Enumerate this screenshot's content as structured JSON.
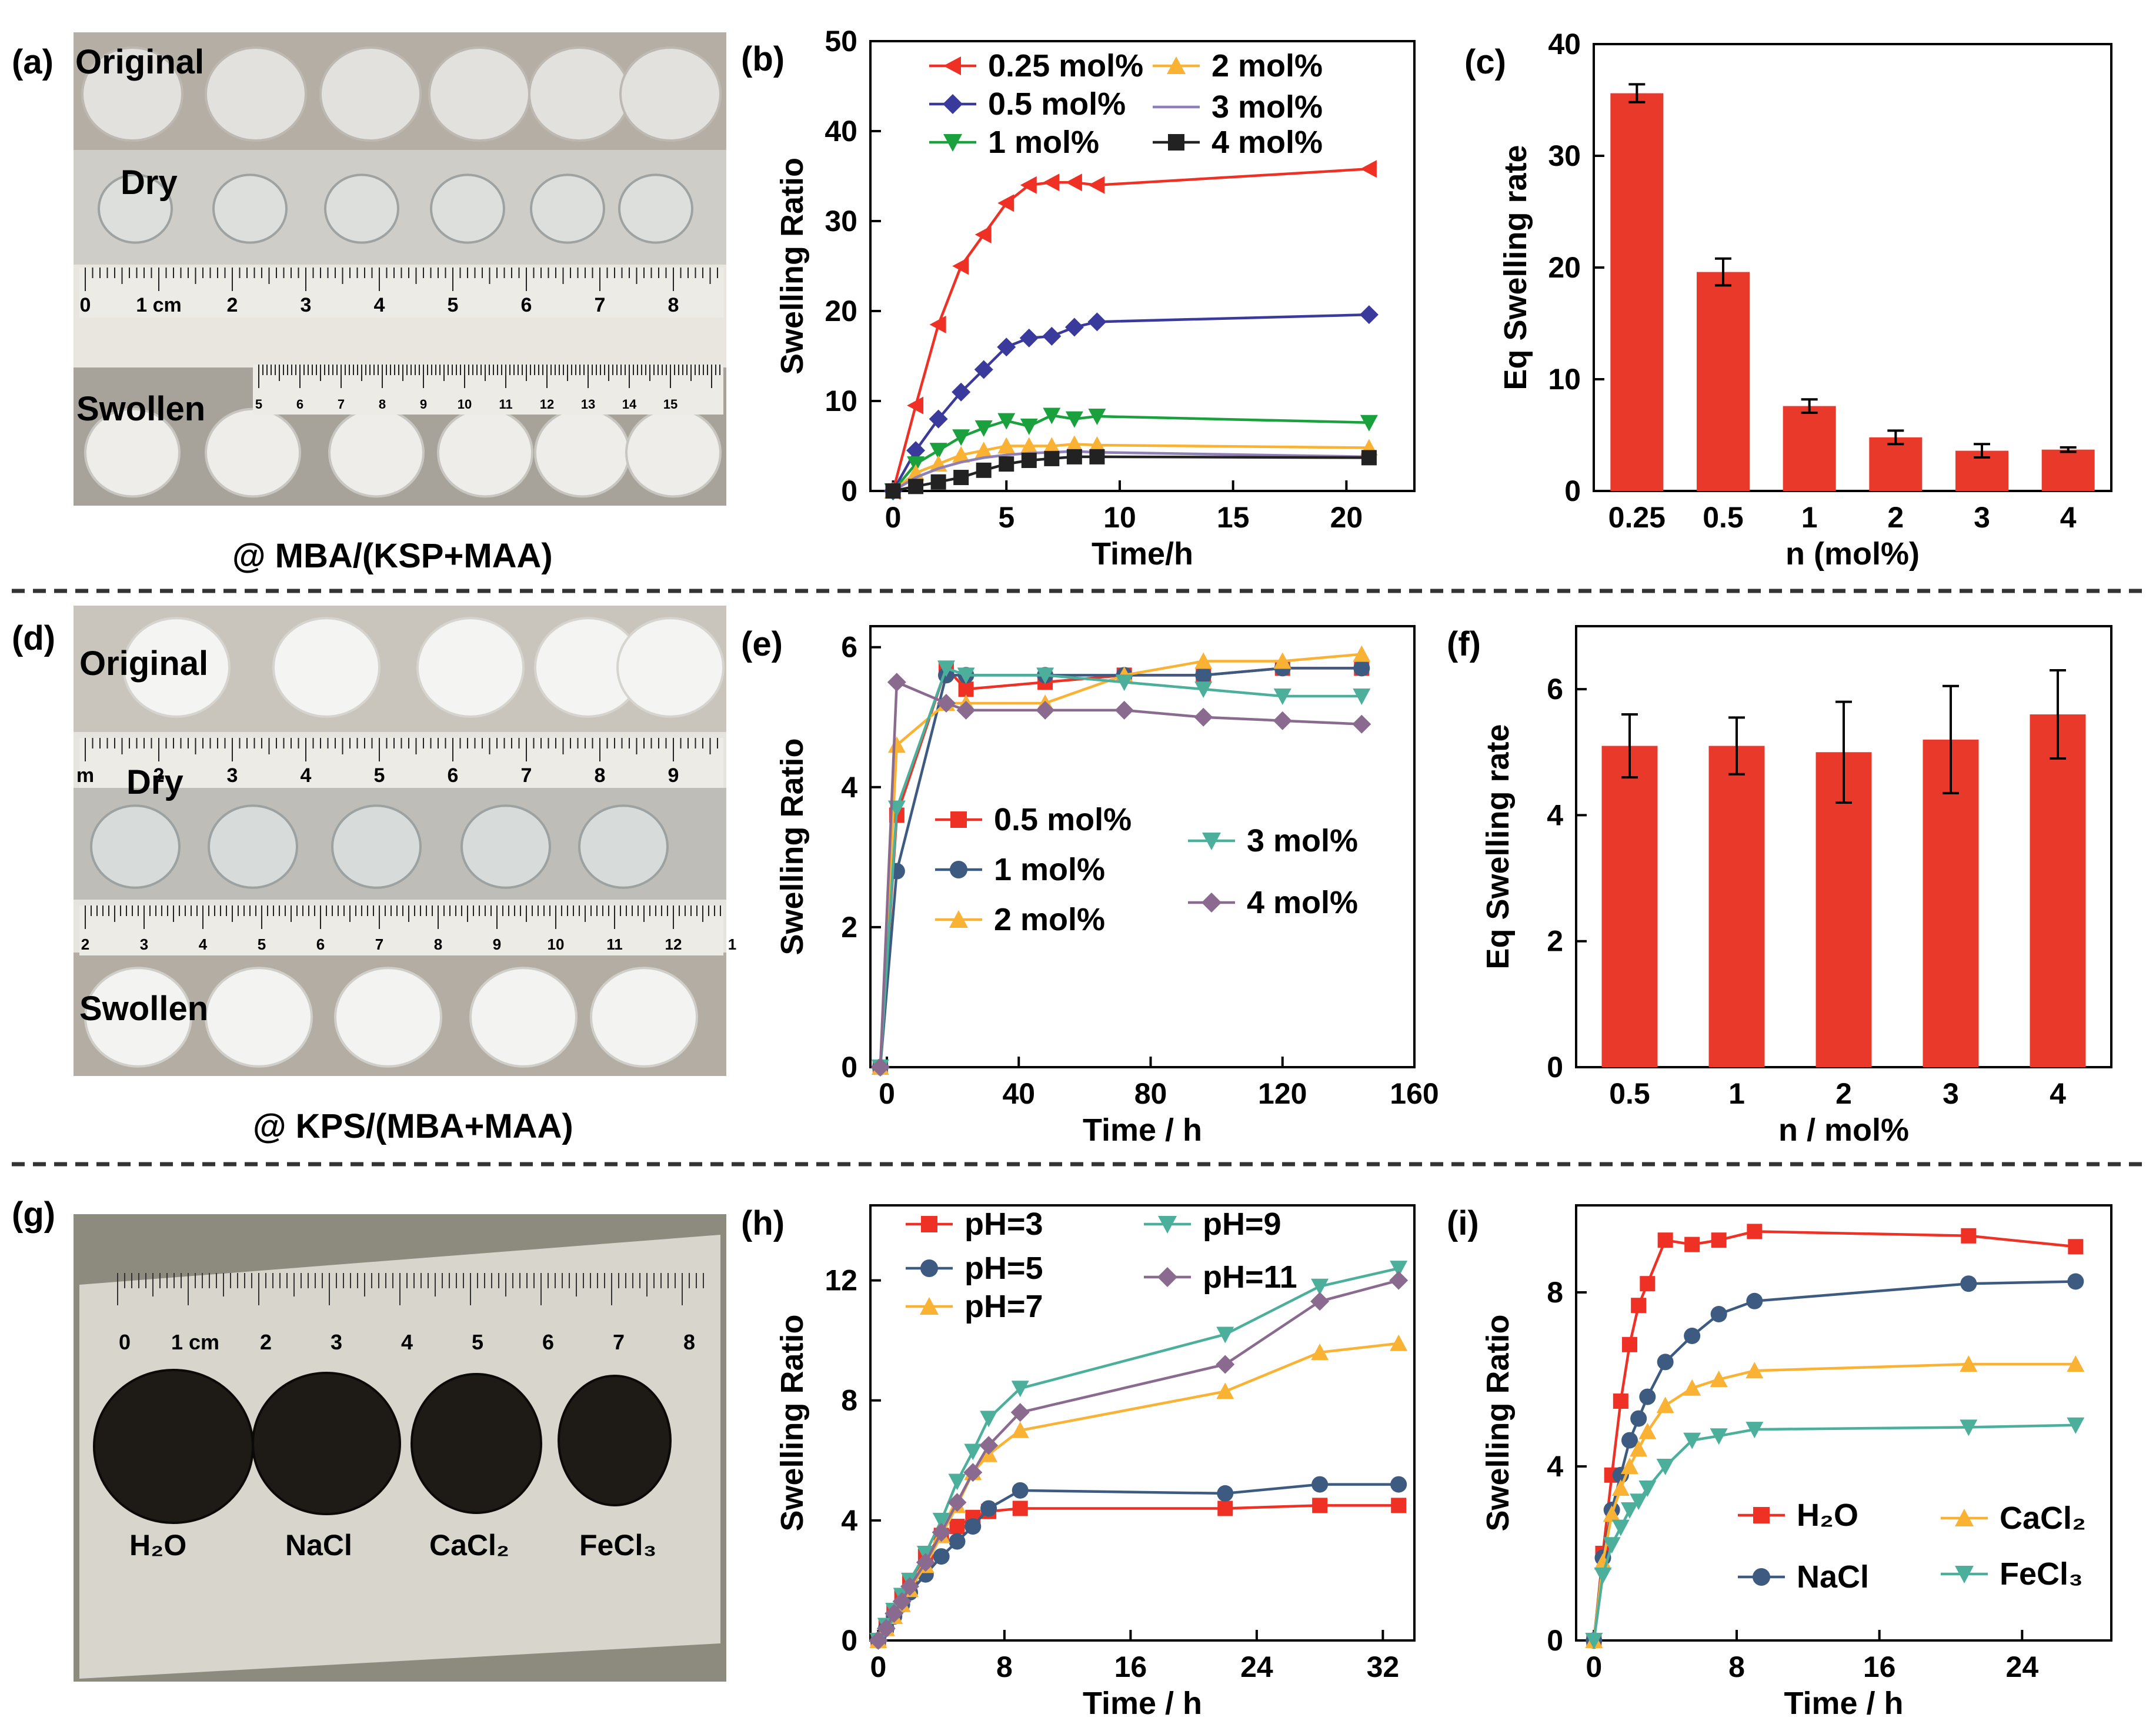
{
  "colors": {
    "red": "#ee3124",
    "blue": "#3a3a9c",
    "green": "#1aa03c",
    "orange": "#f9b233",
    "purple": "#8e7fb6",
    "black": "#222222",
    "steel": "#3d5a80",
    "teal": "#4caf9c",
    "mauve": "#8a6b8f",
    "bar": "#e8392b"
  },
  "photos": {
    "a": {
      "label": "(a)",
      "rows": [
        "Original",
        "Dry",
        "Swollen"
      ],
      "ruler_nums": [
        "0",
        "1 cm",
        "2",
        "3",
        "4",
        "5",
        "6",
        "7",
        "8"
      ],
      "ruler2_nums": [
        "5",
        "6",
        "7",
        "8",
        "9",
        "10",
        "11",
        "12",
        "13",
        "14",
        "15"
      ],
      "caption": "@ MBA/(KSP+MAA)"
    },
    "d": {
      "label": "(d)",
      "rows": [
        "Original",
        "Dry",
        "Swollen"
      ],
      "ruler_nums": [
        "m",
        "2",
        "3",
        "4",
        "5",
        "6",
        "7",
        "8",
        "9"
      ],
      "ruler2_nums": [
        "2",
        "3",
        "4",
        "5",
        "6",
        "7",
        "8",
        "9",
        "10",
        "11",
        "12",
        "1"
      ],
      "caption": "@ KPS/(MBA+MAA)"
    },
    "g": {
      "label": "(g)",
      "ruler_nums": [
        "0",
        "1 cm",
        "2",
        "3",
        "4",
        "5",
        "6",
        "7",
        "8"
      ],
      "samples": [
        "H₂O",
        "NaCl",
        "CaCl₂",
        "FeCl₃"
      ]
    }
  },
  "chart_data": [
    {
      "panel": "(b)",
      "type": "line",
      "xlabel": "Time/h",
      "ylabel": "Swelling Ratio",
      "xlim": [
        -1,
        23
      ],
      "ylim": [
        0,
        50
      ],
      "xticks": [
        0,
        5,
        10,
        15,
        20
      ],
      "yticks": [
        0,
        10,
        20,
        30,
        40,
        50
      ],
      "x": [
        0,
        1,
        2,
        3,
        4,
        5,
        6,
        7,
        8,
        9,
        21
      ],
      "series": [
        {
          "name": "0.25 mol%",
          "color": "red",
          "marker": "tri-left",
          "values": [
            0,
            9.5,
            18.5,
            25,
            28.5,
            32,
            34,
            34.3,
            34.3,
            34,
            35.8
          ]
        },
        {
          "name": "0.5 mol%",
          "color": "blue",
          "marker": "diamond",
          "values": [
            0,
            4.5,
            8,
            11,
            13.5,
            16,
            17,
            17.2,
            18.2,
            18.8,
            19.6
          ]
        },
        {
          "name": "1 mol%",
          "color": "green",
          "marker": "tri-down",
          "values": [
            0,
            3,
            4.5,
            6,
            7,
            7.8,
            7.2,
            8.4,
            8,
            8.3,
            7.6
          ]
        },
        {
          "name": "2 mol%",
          "color": "orange",
          "marker": "tri-up",
          "values": [
            0,
            2,
            3,
            4,
            4.5,
            5,
            5,
            5,
            5.2,
            5.1,
            4.8
          ]
        },
        {
          "name": "3 mol%",
          "color": "purple",
          "marker": "none",
          "values": [
            0,
            1.5,
            2.5,
            3.2,
            3.7,
            4,
            4.2,
            4.3,
            4.4,
            4.3,
            3.8
          ]
        },
        {
          "name": "4 mol%",
          "color": "black",
          "marker": "square",
          "values": [
            0,
            0.5,
            1,
            1.5,
            2.3,
            3,
            3.4,
            3.6,
            3.8,
            3.8,
            3.7
          ]
        }
      ]
    },
    {
      "panel": "(c)",
      "type": "bar",
      "xlabel": "n (mol%)",
      "ylabel": "Eq Swelling rate",
      "ylim": [
        0,
        40
      ],
      "yticks": [
        0,
        10,
        20,
        30,
        40
      ],
      "categories": [
        "0.25",
        "0.5",
        "1",
        "2",
        "3",
        "4"
      ],
      "values": [
        35.6,
        19.6,
        7.6,
        4.8,
        3.6,
        3.7
      ],
      "errors": [
        0.8,
        1.2,
        0.6,
        0.6,
        0.6,
        0.2
      ]
    },
    {
      "panel": "(e)",
      "type": "line",
      "xlabel": "Time / h",
      "ylabel": "Swelling Ratio",
      "xlim": [
        -5,
        160
      ],
      "ylim": [
        0,
        6.3
      ],
      "xticks": [
        0,
        40,
        80,
        120,
        160
      ],
      "yticks": [
        0,
        2,
        4,
        6
      ],
      "x": [
        -2,
        3,
        18,
        24,
        48,
        72,
        96,
        120,
        144
      ],
      "series": [
        {
          "name": "0.5 mol%",
          "color": "red",
          "marker": "square",
          "values": [
            0,
            3.6,
            5.7,
            5.4,
            5.5,
            5.6,
            5.6,
            5.7,
            5.7
          ]
        },
        {
          "name": "1 mol%",
          "color": "steel",
          "marker": "circle",
          "values": [
            0,
            2.8,
            5.6,
            5.6,
            5.6,
            5.6,
            5.6,
            5.7,
            5.7
          ]
        },
        {
          "name": "2 mol%",
          "color": "orange",
          "marker": "tri-up",
          "values": [
            0,
            4.6,
            5.2,
            5.2,
            5.2,
            5.6,
            5.8,
            5.8,
            5.9
          ]
        },
        {
          "name": "3 mol%",
          "color": "teal",
          "marker": "tri-down",
          "values": [
            0,
            3.7,
            5.7,
            5.6,
            5.6,
            5.5,
            5.4,
            5.3,
            5.3
          ]
        },
        {
          "name": "4 mol%",
          "color": "mauve",
          "marker": "diamond",
          "values": [
            0,
            5.5,
            5.2,
            5.1,
            5.1,
            5.1,
            5.0,
            4.95,
            4.9
          ]
        }
      ]
    },
    {
      "panel": "(f)",
      "type": "bar",
      "xlabel": "n / mol%",
      "ylabel": "Eq Swelling rate",
      "ylim": [
        0,
        7
      ],
      "yticks": [
        0,
        2,
        4,
        6
      ],
      "categories": [
        "0.5",
        "1",
        "2",
        "3",
        "4"
      ],
      "values": [
        5.1,
        5.1,
        5.0,
        5.2,
        5.6
      ],
      "errors": [
        0.5,
        0.45,
        0.8,
        0.85,
        0.7
      ]
    },
    {
      "panel": "(h)",
      "type": "line",
      "xlabel": "Time / h",
      "ylabel": "Swelling Ratio",
      "xlim": [
        -0.5,
        34
      ],
      "ylim": [
        0,
        14.5
      ],
      "xticks": [
        0,
        8,
        16,
        24,
        32
      ],
      "yticks": [
        0,
        4,
        8,
        12
      ],
      "x": [
        0,
        0.5,
        1,
        1.5,
        2,
        3,
        4,
        5,
        6,
        7,
        9,
        22,
        28,
        33
      ],
      "series": [
        {
          "name": "pH=3",
          "color": "red",
          "marker": "square",
          "values": [
            0,
            0.5,
            1,
            1.5,
            2,
            2.8,
            3.5,
            3.8,
            4.1,
            4.3,
            4.4,
            4.4,
            4.5,
            4.5
          ]
        },
        {
          "name": "pH=5",
          "color": "steel",
          "marker": "circle",
          "values": [
            0,
            0.4,
            0.8,
            1.2,
            1.6,
            2.2,
            2.8,
            3.3,
            3.8,
            4.4,
            5,
            4.9,
            5.2,
            5.2
          ]
        },
        {
          "name": "pH=7",
          "color": "orange",
          "marker": "tri-up",
          "values": [
            0,
            0.4,
            0.8,
            1.2,
            1.7,
            2.5,
            3.5,
            4.5,
            5.6,
            6.2,
            7,
            8.3,
            9.6,
            9.9
          ]
        },
        {
          "name": "pH=9",
          "color": "teal",
          "marker": "tri-down",
          "values": [
            0,
            0.5,
            1,
            1.5,
            2,
            2.9,
            4,
            5.3,
            6.3,
            7.4,
            8.4,
            10.2,
            11.8,
            12.4
          ]
        },
        {
          "name": "pH=11",
          "color": "mauve",
          "marker": "diamond",
          "values": [
            0,
            0.4,
            0.9,
            1.3,
            1.8,
            2.6,
            3.6,
            4.6,
            5.6,
            6.5,
            7.6,
            9.2,
            11.3,
            12
          ]
        }
      ]
    },
    {
      "panel": "(i)",
      "type": "line",
      "xlabel": "Time / h",
      "ylabel": "Swelling Ratio",
      "xlim": [
        -1,
        29
      ],
      "ylim": [
        0,
        10
      ],
      "xticks": [
        0,
        8,
        16,
        24
      ],
      "yticks": [
        0,
        4,
        8
      ],
      "x": [
        0,
        0.5,
        1,
        1.5,
        2,
        2.5,
        3,
        4,
        5.5,
        7,
        9,
        21,
        27
      ],
      "series": [
        {
          "name": "H₂O",
          "color": "red",
          "marker": "square",
          "values": [
            0,
            2,
            3.8,
            5.5,
            6.8,
            7.7,
            8.2,
            9.2,
            9.1,
            9.2,
            9.4,
            9.3,
            9.05
          ]
        },
        {
          "name": "NaCl",
          "color": "steel",
          "marker": "circle",
          "values": [
            0,
            1.9,
            3,
            3.8,
            4.6,
            5.1,
            5.6,
            6.4,
            7,
            7.5,
            7.8,
            8.2,
            8.25
          ]
        },
        {
          "name": "CaCl₂",
          "color": "orange",
          "marker": "tri-up",
          "values": [
            0,
            1.8,
            2.9,
            3.5,
            4,
            4.4,
            4.8,
            5.4,
            5.8,
            6,
            6.2,
            6.35,
            6.35
          ]
        },
        {
          "name": "FeCl₃",
          "color": "teal",
          "marker": "tri-down",
          "values": [
            0,
            1.5,
            2.2,
            2.6,
            3,
            3.2,
            3.5,
            4,
            4.6,
            4.7,
            4.85,
            4.9,
            4.95
          ]
        }
      ]
    }
  ]
}
